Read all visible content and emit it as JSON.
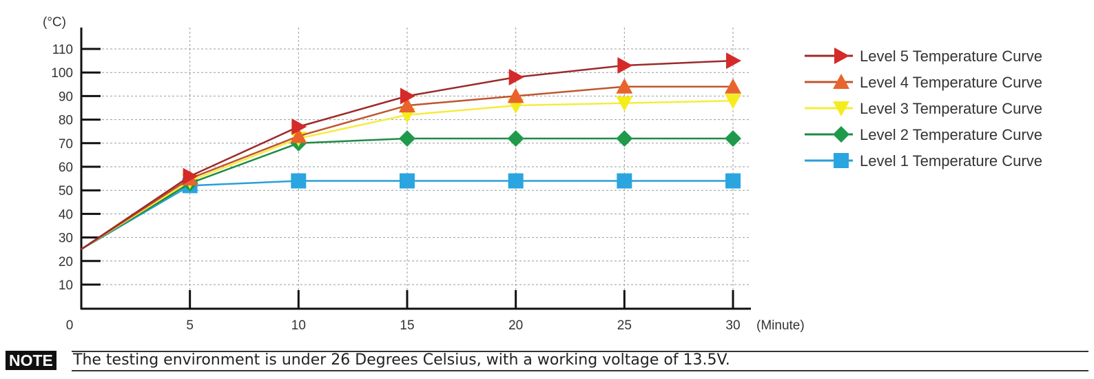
{
  "chart_data": {
    "type": "line",
    "y_unit": "(°C)",
    "x_unit": "(Minute)",
    "x_origin_label": "0",
    "x": [
      0,
      5,
      10,
      15,
      20,
      25,
      30
    ],
    "x_ticks": [
      5,
      10,
      15,
      20,
      25,
      30
    ],
    "y_ticks": [
      10,
      20,
      30,
      40,
      50,
      60,
      70,
      80,
      90,
      100,
      110
    ],
    "xlim": [
      0,
      30
    ],
    "ylim": [
      0,
      115
    ],
    "grid": true,
    "legend_position": "right",
    "series": [
      {
        "name": "Level 5 Temperature Curve",
        "marker": "triangle-right",
        "color": "#d42a2a",
        "line_color": "#9c2a2a",
        "values": [
          25,
          56,
          77,
          90,
          98,
          103,
          105
        ]
      },
      {
        "name": "Level 4 Temperature Curve",
        "marker": "triangle-up",
        "color": "#e8642c",
        "line_color": "#c0552e",
        "values": [
          25,
          55,
          73,
          86,
          90,
          94,
          94
        ]
      },
      {
        "name": "Level 3 Temperature Curve",
        "marker": "triangle-down",
        "color": "#f5ec1e",
        "line_color": "#f5ec3c",
        "values": [
          25,
          54,
          72,
          82,
          86,
          87,
          88
        ]
      },
      {
        "name": "Level 2 Temperature Curve",
        "marker": "diamond",
        "color": "#1e9a4a",
        "line_color": "#1e8a44",
        "values": [
          25,
          53,
          70,
          72,
          72,
          72,
          72
        ]
      },
      {
        "name": "Level 1 Temperature Curve",
        "marker": "square",
        "color": "#2aa5e0",
        "line_color": "#2a9fd6",
        "values": [
          25,
          52,
          54,
          54,
          54,
          54,
          54
        ]
      }
    ]
  },
  "note": {
    "badge": "NOTE",
    "text": "The testing environment is under 26 Degrees Celsius, with a working voltage of 13.5V."
  }
}
